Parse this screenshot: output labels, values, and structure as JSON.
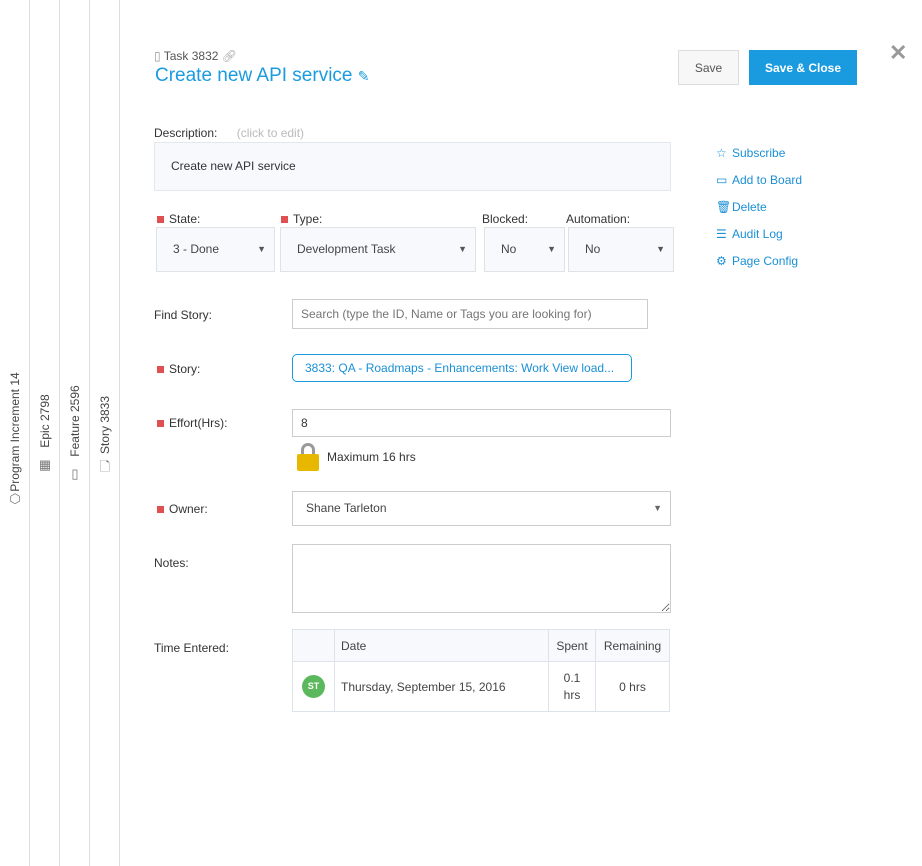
{
  "breadcrumbs": [
    {
      "label": "Program Increment 14",
      "icon": "program-increment-icon"
    },
    {
      "label": "Epic 2798",
      "icon": "grid-icon"
    },
    {
      "label": "Feature 2596",
      "icon": "feature-icon"
    },
    {
      "label": "Story 3833",
      "icon": "document-icon"
    }
  ],
  "header": {
    "task_id": "Task 3832",
    "title": "Create new API service",
    "save": "Save",
    "save_close": "Save & Close"
  },
  "description": {
    "label": "Description:",
    "hint": "(click to edit)",
    "value": "Create new API service"
  },
  "fields": {
    "state": {
      "label": "State:",
      "value": "3 - Done"
    },
    "type": {
      "label": "Type:",
      "value": "Development Task"
    },
    "blocked": {
      "label": "Blocked:",
      "value": "No"
    },
    "automation": {
      "label": "Automation:",
      "value": "No"
    },
    "find_story": {
      "label": "Find Story:",
      "placeholder": "Search (type the ID, Name or Tags you are looking for)"
    },
    "story": {
      "label": "Story:",
      "value": "3833: QA - Roadmaps - Enhancements: Work View load..."
    },
    "effort": {
      "label": "Effort(Hrs):",
      "value": "8",
      "max": "Maximum 16 hrs"
    },
    "owner": {
      "label": "Owner:",
      "value": "Shane Tarleton"
    },
    "notes": {
      "label": "Notes:",
      "value": ""
    },
    "time": {
      "label": "Time Entered:"
    }
  },
  "actions": [
    "Subscribe",
    "Add to Board",
    "Delete",
    "Audit Log",
    "Page Config"
  ],
  "time_table": {
    "headers": [
      "",
      "Date",
      "Spent",
      "Remaining"
    ],
    "rows": [
      {
        "avatar": "ST",
        "date": "Thursday, September 15, 2016",
        "spent": "0.1 hrs",
        "remaining": "0 hrs"
      }
    ]
  },
  "colors": {
    "accent": "#1a9be0",
    "required": "#e05050",
    "avatar": "#5cb85c"
  }
}
